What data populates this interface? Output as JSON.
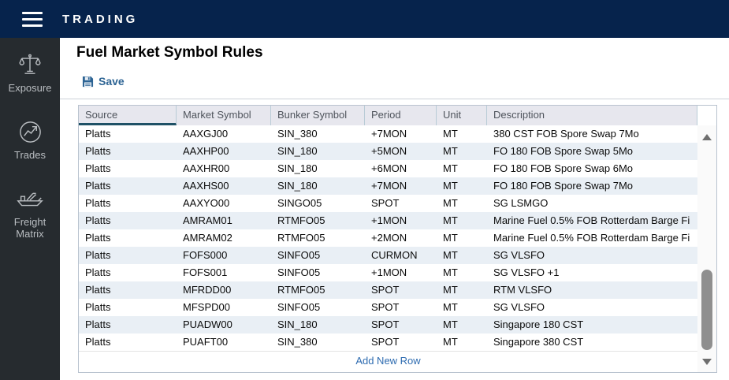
{
  "navbar": {
    "title": "TRADING"
  },
  "sidebar": {
    "items": [
      {
        "label": "Exposure",
        "icon": "scales-icon"
      },
      {
        "label": "Trades",
        "icon": "trend-chart-icon"
      },
      {
        "label": "Freight Matrix",
        "icon": "ship-icon"
      }
    ]
  },
  "page": {
    "title": "Fuel Market Symbol Rules",
    "save_label": "Save",
    "add_row_label": "Add New Row"
  },
  "table": {
    "columns": [
      "Source",
      "Market Symbol",
      "Bunker Symbol",
      "Period",
      "Unit",
      "Description"
    ],
    "sorted_column": "Source",
    "rows": [
      [
        "Platts",
        "AAXGJ00",
        "SIN_380",
        "+7MON",
        "MT",
        "380 CST FOB Spore Swap 7Mo"
      ],
      [
        "Platts",
        "AAXHP00",
        "SIN_180",
        "+5MON",
        "MT",
        "FO 180 FOB Spore Swap 5Mo"
      ],
      [
        "Platts",
        "AAXHR00",
        "SIN_180",
        "+6MON",
        "MT",
        "FO 180 FOB Spore Swap 6Mo"
      ],
      [
        "Platts",
        "AAXHS00",
        "SIN_180",
        "+7MON",
        "MT",
        "FO 180 FOB Spore Swap 7Mo"
      ],
      [
        "Platts",
        "AAXYO00",
        "SINGO05",
        "SPOT",
        "MT",
        "SG LSMGO"
      ],
      [
        "Platts",
        "AMRAM01",
        "RTMFO05",
        "+1MON",
        "MT",
        "Marine Fuel 0.5% FOB Rotterdam Barge Fi"
      ],
      [
        "Platts",
        "AMRAM02",
        "RTMFO05",
        "+2MON",
        "MT",
        "Marine Fuel 0.5% FOB Rotterdam Barge Fi"
      ],
      [
        "Platts",
        "FOFS000",
        "SINFO05",
        "CURMON",
        "MT",
        "SG VLSFO"
      ],
      [
        "Platts",
        "FOFS001",
        "SINFO05",
        "+1MON",
        "MT",
        "SG VLSFO +1"
      ],
      [
        "Platts",
        "MFRDD00",
        "RTMFO05",
        "SPOT",
        "MT",
        "RTM VLSFO"
      ],
      [
        "Platts",
        "MFSPD00",
        "SINFO05",
        "SPOT",
        "MT",
        "SG VLSFO"
      ],
      [
        "Platts",
        "PUADW00",
        "SIN_180",
        "SPOT",
        "MT",
        "Singapore 180 CST"
      ],
      [
        "Platts",
        "PUAFT00",
        "SIN_380",
        "SPOT",
        "MT",
        "Singapore 380 CST"
      ]
    ]
  },
  "colors": {
    "navbar_bg": "#06234c",
    "sidebar_bg": "#262b2f",
    "accent_blue": "#2d6494",
    "link_blue": "#2d6bb0",
    "header_bg": "#e7e7ee",
    "row_alt_bg": "#e9eff5",
    "sort_underline": "#1f5166",
    "table_border": "#b9c3cf",
    "scroll_thumb": "#8f8f8f"
  }
}
